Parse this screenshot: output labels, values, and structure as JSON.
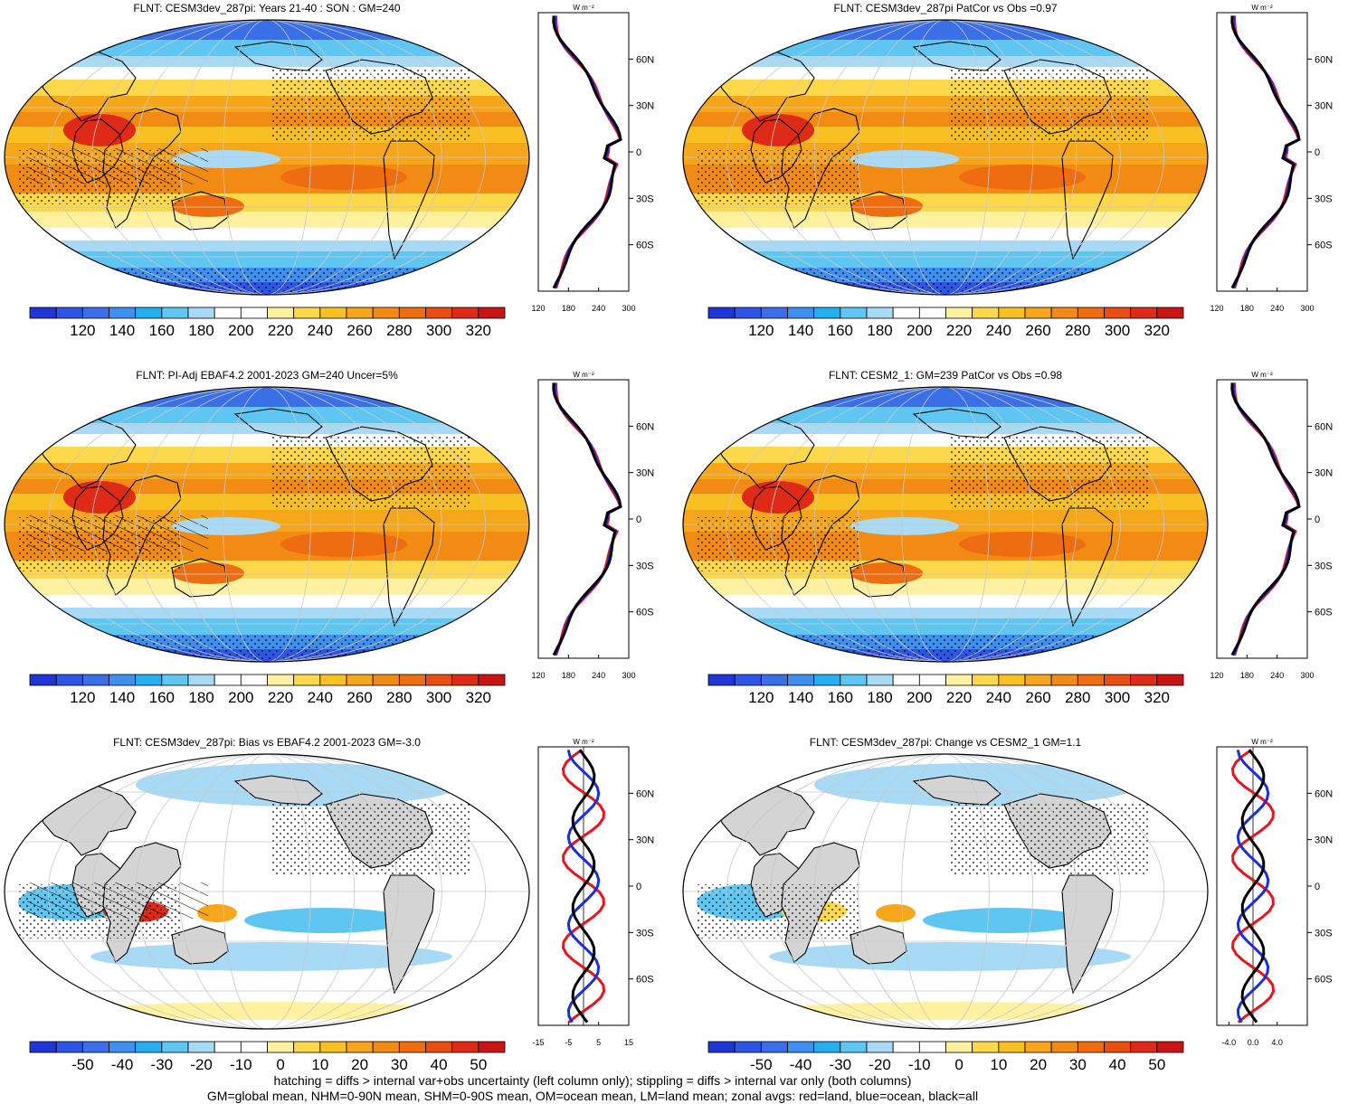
{
  "panels": [
    {
      "title": "FLNT: CESM3dev_287pi: Years 21-40 : SON : GM=240",
      "colorbar": [
        "120",
        "140",
        "160",
        "180",
        "200",
        "220",
        "240",
        "260",
        "280",
        "300",
        "320"
      ],
      "profile": {
        "unit": "W m⁻²",
        "xticks": [
          "120",
          "180",
          "240",
          "300"
        ],
        "xlim": [
          120,
          300
        ],
        "lat_ticks": [
          "60N",
          "30N",
          "0",
          "30S",
          "60S"
        ]
      }
    },
    {
      "title": "FLNT: CESM3dev_287pi PatCor vs Obs =0.97",
      "colorbar": [
        "120",
        "140",
        "160",
        "180",
        "200",
        "220",
        "240",
        "260",
        "280",
        "300",
        "320"
      ],
      "profile": {
        "unit": "W m⁻²",
        "xticks": [
          "120",
          "180",
          "240",
          "300"
        ],
        "xlim": [
          120,
          300
        ],
        "lat_ticks": [
          "60N",
          "30N",
          "0",
          "30S",
          "60S"
        ]
      }
    },
    {
      "title": "FLNT: PI-Adj EBAF4.2 2001-2023 GM=240 Uncer=5%",
      "colorbar": [
        "120",
        "140",
        "160",
        "180",
        "200",
        "220",
        "240",
        "260",
        "280",
        "300",
        "320"
      ],
      "profile": {
        "unit": "W m⁻²",
        "xticks": [
          "120",
          "180",
          "240",
          "300"
        ],
        "xlim": [
          120,
          300
        ],
        "lat_ticks": [
          "60N",
          "30N",
          "0",
          "30S",
          "60S"
        ]
      }
    },
    {
      "title": "FLNT: CESM2_1: GM=239 PatCor vs Obs =0.98",
      "colorbar": [
        "120",
        "140",
        "160",
        "180",
        "200",
        "220",
        "240",
        "260",
        "280",
        "300",
        "320"
      ],
      "profile": {
        "unit": "W m⁻²",
        "xticks": [
          "120",
          "180",
          "240",
          "300"
        ],
        "xlim": [
          120,
          300
        ],
        "lat_ticks": [
          "60N",
          "30N",
          "0",
          "30S",
          "60S"
        ]
      }
    },
    {
      "title": "FLNT: CESM3dev_287pi: Bias vs EBAF4.2 2001-2023  GM=-3.0",
      "colorbar": [
        "-50",
        "-40",
        "-30",
        "-20",
        "-10",
        "0",
        "10",
        "20",
        "30",
        "40",
        "50"
      ],
      "profile": {
        "unit": "W m⁻²",
        "xticks": [
          "-15",
          "-5",
          "5",
          "15"
        ],
        "xlim": [
          -15,
          15
        ],
        "lat_ticks": [
          "60N",
          "30N",
          "0",
          "30S",
          "60S"
        ]
      }
    },
    {
      "title": "FLNT: CESM3dev_287pi: Change vs CESM2_1 GM=1.1",
      "colorbar": [
        "-50",
        "-40",
        "-30",
        "-20",
        "-10",
        "0",
        "10",
        "20",
        "30",
        "40",
        "50"
      ],
      "profile": {
        "unit": "W m⁻²",
        "xticks": [
          "-4.0",
          "0.0",
          "4.0"
        ],
        "xlim": [
          -6,
          9
        ],
        "lat_ticks": [
          "60N",
          "30N",
          "0",
          "30S",
          "60S"
        ]
      }
    }
  ],
  "colors": {
    "absolute": [
      "#1f35d6",
      "#2f55e6",
      "#3a6fe8",
      "#3f8ff0",
      "#25aef0",
      "#5fc6f2",
      "#a8daf5",
      "#ffffff",
      "#ffffff",
      "#fff1a0",
      "#fcd84a",
      "#f8c022",
      "#f6a61a",
      "#f28b14",
      "#ee6d10",
      "#e84d12",
      "#de2a16",
      "#c81414"
    ],
    "diff": [
      "#1f35d6",
      "#2f55e6",
      "#3a6fe8",
      "#3f8ff0",
      "#25aef0",
      "#5fc6f2",
      "#a8daf5",
      "#ffffff",
      "#ffffff",
      "#fff1a0",
      "#fcd84a",
      "#f8c022",
      "#f6a61a",
      "#f28b14",
      "#ee6d10",
      "#e84d12",
      "#de2a16",
      "#c81414"
    ],
    "land": "#d4d4d4",
    "profile_land": "#e8141c",
    "profile_ocean": "#1a2ee0",
    "profile_all": "#000000"
  },
  "footer": {
    "line1": "hatching = diffs > internal var+obs uncertainty (left column only); stippling = diffs > internal var only (both columns)",
    "line2": "GM=global mean, NHM=0-90N mean, SHM=0-90S mean, OM=ocean mean, LM=land mean; zonal avgs: red=land, blue=ocean, black=all"
  }
}
